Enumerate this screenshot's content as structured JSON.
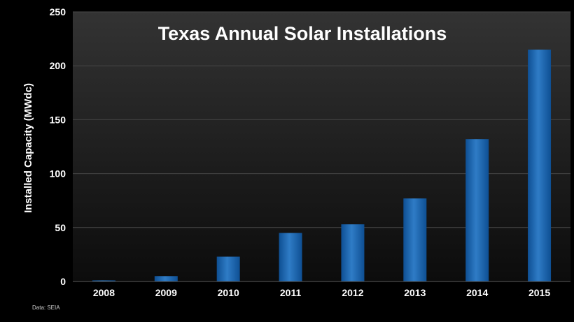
{
  "chart_data": {
    "type": "bar",
    "title": "Texas Annual Solar Installations",
    "xlabel": "",
    "ylabel": "Installed Capacity (MWdc)",
    "categories": [
      "2008",
      "2009",
      "2010",
      "2011",
      "2012",
      "2013",
      "2014",
      "2015"
    ],
    "values": [
      1,
      5,
      23,
      45,
      53,
      77,
      132,
      215
    ],
    "ylim": [
      0,
      250
    ],
    "yticks": [
      "0",
      "50",
      "100",
      "150",
      "200",
      "250"
    ],
    "grid": "horizontal",
    "legend": "none",
    "source_note": "Data: SEIA",
    "colors": {
      "background": "#000000",
      "plot_gradient_top": "#333333",
      "plot_gradient_bottom": "#0c0c0c",
      "gridline": "#474747",
      "bar_light": "#2f7cc6",
      "bar_dark": "#0e4f93",
      "text": "#ffffff"
    }
  }
}
